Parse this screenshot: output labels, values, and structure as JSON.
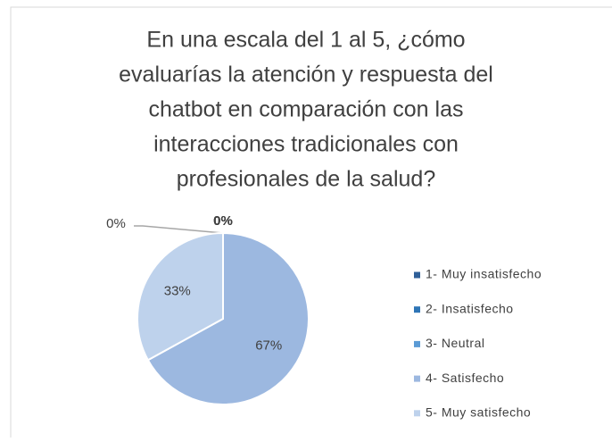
{
  "chart_data": {
    "type": "pie",
    "title": [
      "En una escala del 1 al 5, ¿cómo",
      "evaluarías la atención y respuesta del",
      "chatbot en comparación con las",
      "interacciones tradicionales con",
      "profesionales de la salud?"
    ],
    "categories": [
      "1- Muy insatisfecho",
      "2- Insatisfecho",
      "3- Neutral",
      "4- Satisfecho",
      "5- Muy satisfecho"
    ],
    "values": [
      0,
      0,
      0,
      67,
      33
    ],
    "value_labels": [
      "0%",
      "0%",
      "0%",
      "67%",
      "33%"
    ],
    "colors": [
      "#2f5f98",
      "#2e75b6",
      "#5b9bd5",
      "#9cb8e0",
      "#bed2ec"
    ],
    "legend": "right"
  }
}
